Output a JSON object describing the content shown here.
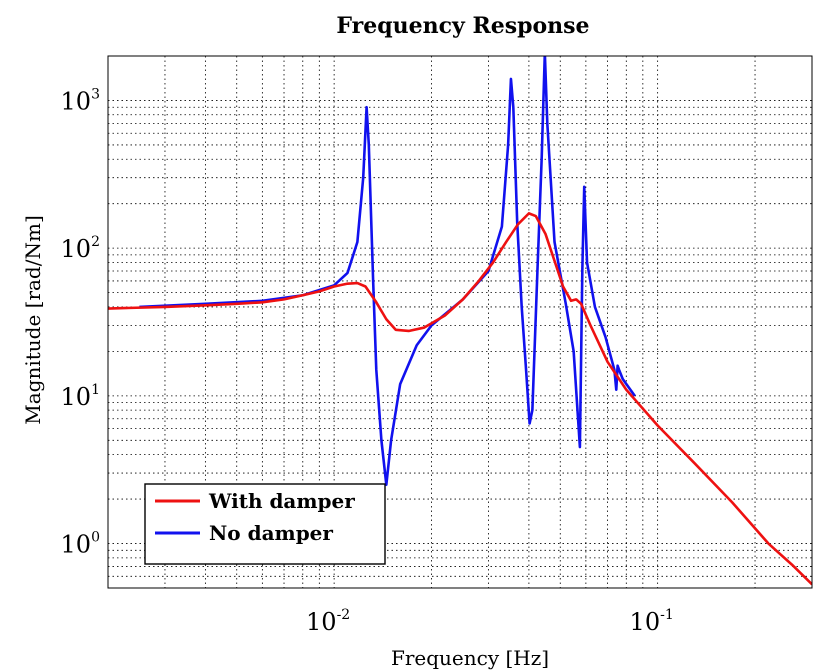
{
  "chart_data": {
    "type": "line",
    "title": "Frequency Response",
    "xlabel": "Frequency [Hz]",
    "ylabel": "Magnitude [rad/Nm]",
    "xscale": "log",
    "yscale": "log",
    "xlim": [
      0.002,
      0.3
    ],
    "ylim": [
      0.5,
      2000
    ],
    "grid": true,
    "legend_position": "bottom-left",
    "x_ticks": [
      {
        "base": "10",
        "exp": "-2",
        "value": 0.01
      },
      {
        "base": "10",
        "exp": "-1",
        "value": 0.1
      }
    ],
    "y_ticks": [
      {
        "base": "10",
        "exp": "0",
        "value": 1
      },
      {
        "base": "10",
        "exp": "1",
        "value": 10
      },
      {
        "base": "10",
        "exp": "2",
        "value": 100
      },
      {
        "base": "10",
        "exp": "3",
        "value": 1000
      }
    ],
    "series": [
      {
        "name": "With damper",
        "color": "#ee1111",
        "points": [
          [
            0.002,
            39
          ],
          [
            0.003,
            40
          ],
          [
            0.004,
            41
          ],
          [
            0.005,
            42
          ],
          [
            0.006,
            43
          ],
          [
            0.007,
            45
          ],
          [
            0.008,
            48
          ],
          [
            0.009,
            51
          ],
          [
            0.01,
            55
          ],
          [
            0.011,
            57.5
          ],
          [
            0.0118,
            58
          ],
          [
            0.0125,
            55
          ],
          [
            0.0135,
            43
          ],
          [
            0.0145,
            33
          ],
          [
            0.0155,
            28
          ],
          [
            0.017,
            27.5
          ],
          [
            0.019,
            29
          ],
          [
            0.022,
            35
          ],
          [
            0.025,
            45
          ],
          [
            0.028,
            60
          ],
          [
            0.031,
            80
          ],
          [
            0.034,
            110
          ],
          [
            0.037,
            145
          ],
          [
            0.04,
            172
          ],
          [
            0.042,
            165
          ],
          [
            0.045,
            125
          ],
          [
            0.048,
            82
          ],
          [
            0.051,
            55
          ],
          [
            0.054,
            44
          ],
          [
            0.056,
            45
          ],
          [
            0.058,
            42
          ],
          [
            0.062,
            30
          ],
          [
            0.07,
            17
          ],
          [
            0.08,
            11
          ],
          [
            0.1,
            6.3
          ],
          [
            0.13,
            3.5
          ],
          [
            0.17,
            1.9
          ],
          [
            0.22,
            1.0
          ],
          [
            0.26,
            0.72
          ],
          [
            0.3,
            0.53
          ]
        ]
      },
      {
        "name": "No damper",
        "color": "#1111ee",
        "points": [
          [
            0.0025,
            40
          ],
          [
            0.004,
            42
          ],
          [
            0.006,
            44
          ],
          [
            0.008,
            48
          ],
          [
            0.01,
            56
          ],
          [
            0.011,
            68
          ],
          [
            0.0118,
            110
          ],
          [
            0.0123,
            300
          ],
          [
            0.0126,
            900
          ],
          [
            0.0128,
            500
          ],
          [
            0.0132,
            60
          ],
          [
            0.0135,
            15
          ],
          [
            0.014,
            5
          ],
          [
            0.0145,
            2.5
          ],
          [
            0.015,
            5
          ],
          [
            0.016,
            12
          ],
          [
            0.018,
            22
          ],
          [
            0.02,
            30
          ],
          [
            0.025,
            45
          ],
          [
            0.03,
            70
          ],
          [
            0.033,
            140
          ],
          [
            0.0345,
            500
          ],
          [
            0.0352,
            1400
          ],
          [
            0.0358,
            900
          ],
          [
            0.0368,
            150
          ],
          [
            0.038,
            40
          ],
          [
            0.0392,
            15
          ],
          [
            0.0402,
            6.5
          ],
          [
            0.041,
            8
          ],
          [
            0.0425,
            70
          ],
          [
            0.0438,
            400
          ],
          [
            0.0448,
            2100
          ],
          [
            0.0456,
            700
          ],
          [
            0.048,
            110
          ],
          [
            0.052,
            42
          ],
          [
            0.055,
            20
          ],
          [
            0.0575,
            4.5
          ],
          [
            0.0585,
            70
          ],
          [
            0.0593,
            260
          ],
          [
            0.0605,
            80
          ],
          [
            0.064,
            40
          ],
          [
            0.069,
            25
          ],
          [
            0.0735,
            15
          ],
          [
            0.0745,
            11
          ],
          [
            0.0752,
            16
          ],
          [
            0.076,
            15
          ],
          [
            0.078,
            13
          ],
          [
            0.085,
            10
          ]
        ]
      }
    ]
  }
}
